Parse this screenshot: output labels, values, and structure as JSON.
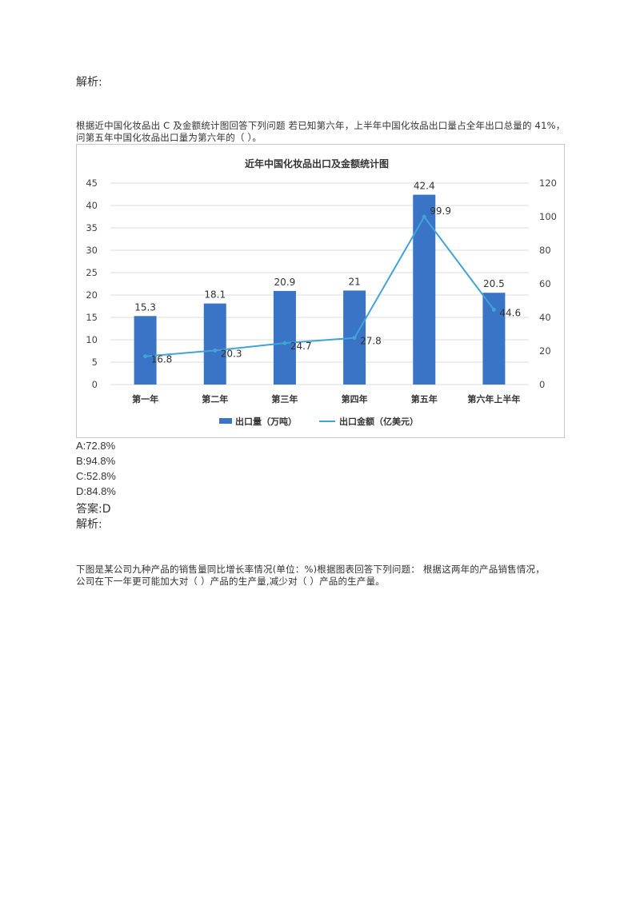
{
  "section1": {
    "heading": "解析:",
    "question_line1": "根据近中国化妆品出  C 及金额统计图回答下列问题  若已知第六年，上半年中国化妆品出口量占全年出口总量的  41%，",
    "question_line2": "问第五年中国化妆品出口量为第六年的（     ）。",
    "options": [
      "A:72.8%",
      "B:94.8%",
      "C:52.8%",
      "D:84.8%"
    ],
    "answer": "答案:D",
    "analysis": "解析:"
  },
  "section2": {
    "question_line1": "下图是某公司九种产品的销售量同比增长率情况(单位：%)根据图表回答下列问题：   根据这两年的产品销售情况，",
    "question_line2": "公司在下一年更可能加大对（     ）产品的生产量,减少对（     ）产品的生产量。"
  },
  "colors": {
    "bar": "#3a74c6",
    "line": "#41a3d6",
    "grid": "#dddddd"
  },
  "chart_data": {
    "type": "bar+line",
    "title": "近年中国化妆品出口及金额统计图",
    "categories": [
      "第一年",
      "第二年",
      "第三年",
      "第四年",
      "第五年",
      "第六年上半年"
    ],
    "series": [
      {
        "name": "出口量（万吨）",
        "type": "bar",
        "axis": "left",
        "values": [
          15.3,
          18.1,
          20.9,
          21,
          42.4,
          20.5
        ]
      },
      {
        "name": "出口金额（亿美元）",
        "type": "line",
        "axis": "right",
        "values": [
          16.8,
          20.3,
          24.7,
          27.8,
          99.9,
          44.6
        ]
      }
    ],
    "y_left": {
      "ylim": [
        0,
        45
      ],
      "ticks": [
        0,
        5,
        10,
        15,
        20,
        25,
        30,
        35,
        40,
        45
      ]
    },
    "y_right": {
      "ylim": [
        0,
        120
      ],
      "ticks": [
        0,
        20,
        40,
        60,
        80,
        100,
        120
      ]
    },
    "legend_position": "bottom",
    "grid": true
  }
}
